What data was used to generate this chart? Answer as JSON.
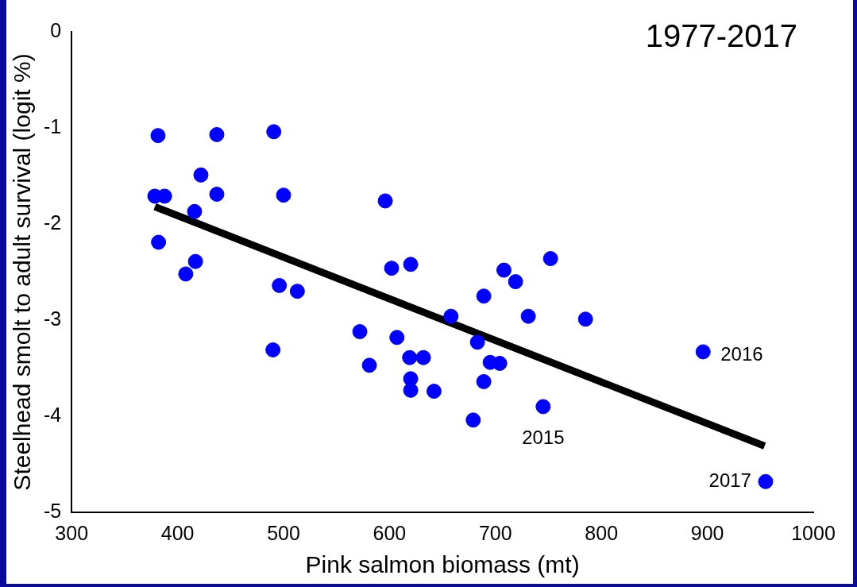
{
  "chart_data": {
    "type": "scatter",
    "title": "1977-2017",
    "xlabel": "Pink salmon biomass (mt)",
    "ylabel": "Steelhead smolt to adult survival (logit %)",
    "xlim": [
      300,
      1000
    ],
    "xticks": [
      300,
      400,
      500,
      600,
      700,
      800,
      900,
      1000
    ],
    "ylim": [
      -5,
      0
    ],
    "yticks": [
      -5,
      -4,
      -3,
      -2,
      -1,
      0
    ],
    "grid": false,
    "legend": false,
    "series": [
      {
        "type": "scatter",
        "marker": "circle",
        "color": "#0000ff",
        "x": [
          378.5,
          387.7,
          381.5,
          382,
          407.7,
          416.9,
          416,
          422,
          437,
          437,
          490.8,
          500,
          496,
          513,
          490,
          572,
          581,
          596,
          602,
          607,
          620,
          619,
          620,
          620,
          632,
          642,
          658,
          679,
          683,
          689,
          689,
          695,
          704,
          708,
          719,
          731,
          745,
          752,
          785,
          896,
          955
        ],
        "values": [
          -1.71,
          -1.71,
          -1.08,
          -2.19,
          -2.52,
          -2.39,
          -1.87,
          -1.49,
          -1.07,
          -1.69,
          -1.04,
          -1.7,
          -2.64,
          -2.7,
          -3.31,
          -3.12,
          -3.47,
          -1.76,
          -2.46,
          -3.18,
          -2.42,
          -3.39,
          -3.61,
          -3.73,
          -3.39,
          -3.74,
          -2.96,
          -4.04,
          -3.23,
          -2.75,
          -3.64,
          -3.44,
          -3.45,
          -2.48,
          -2.6,
          -2.96,
          -3.9,
          -2.36,
          -2.99,
          -3.33,
          -4.68
        ]
      },
      {
        "type": "line",
        "marker": "none",
        "color": "#000000",
        "x": [
          378.5,
          954
        ],
        "values": [
          -1.82,
          -4.31
        ]
      }
    ],
    "annotations": [
      {
        "text": "2015",
        "x": 745,
        "y": -3.9
      },
      {
        "text": "2016",
        "x": 896,
        "y": -3.33
      },
      {
        "text": "2017",
        "x": 955,
        "y": -4.68
      }
    ]
  }
}
